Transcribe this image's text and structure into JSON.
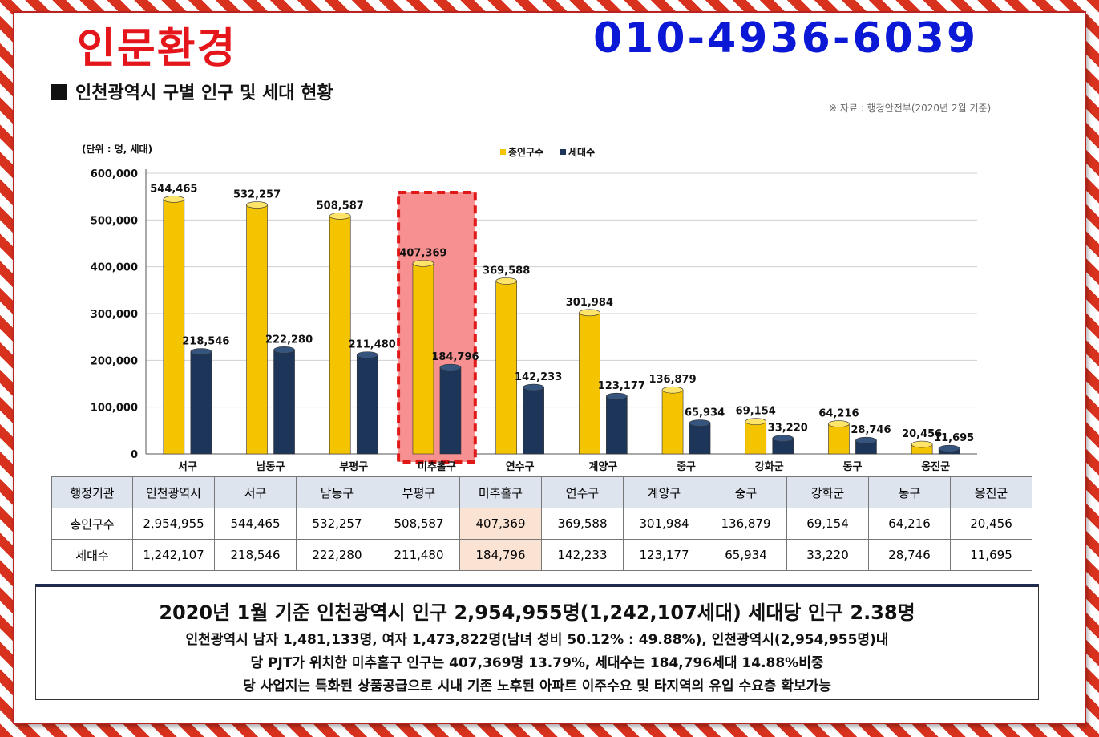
{
  "header": {
    "brand": "인문환경",
    "phone": "010-4936-6039",
    "section_title": "인천광역시 구별 인구 및 세대 현황",
    "source": "※ 자료 : 행정안전부(2020년 2월 기준)"
  },
  "colors": {
    "population": "#f5c400",
    "households": "#1d3559",
    "highlight": "#f79090",
    "brand_red": "#e4161c",
    "phone_blue": "#0b18d6"
  },
  "chart_data": {
    "type": "bar",
    "unit_label": "(단위 : 명, 세대)",
    "categories": [
      "서구",
      "남동구",
      "부평구",
      "미추홀구",
      "연수구",
      "계양구",
      "중구",
      "강화군",
      "동구",
      "옹진군"
    ],
    "series": [
      {
        "name": "총인구수",
        "values": [
          544465,
          532257,
          508587,
          407369,
          369588,
          301984,
          136879,
          69154,
          64216,
          20456
        ],
        "labels": [
          "544,465",
          "532,257",
          "508,587",
          "407,369",
          "369,588",
          "301,984",
          "136,879",
          "69,154",
          "64,216",
          "20,456"
        ]
      },
      {
        "name": "세대수",
        "values": [
          218546,
          222280,
          211480,
          184796,
          142233,
          123177,
          65934,
          33220,
          28746,
          11695
        ],
        "labels": [
          "218,546",
          "222,280",
          "211,480",
          "184,796",
          "142,233",
          "123,177",
          "65,934",
          "33,220",
          "28,746",
          "11,695"
        ]
      }
    ],
    "ylim": [
      0,
      600000
    ],
    "yticks": [
      "0",
      "100,000",
      "200,000",
      "300,000",
      "400,000",
      "500,000",
      "600,000"
    ],
    "legend_position": "top",
    "highlight_category": "미추홀구"
  },
  "table": {
    "header": [
      "행정기관",
      "인천광역시",
      "서구",
      "남동구",
      "부평구",
      "미추홀구",
      "연수구",
      "계양구",
      "중구",
      "강화군",
      "동구",
      "옹진군"
    ],
    "rows": [
      [
        "총인구수",
        "2,954,955",
        "544,465",
        "532,257",
        "508,587",
        "407,369",
        "369,588",
        "301,984",
        "136,879",
        "69,154",
        "64,216",
        "20,456"
      ],
      [
        "세대수",
        "1,242,107",
        "218,546",
        "222,280",
        "211,480",
        "184,796",
        "142,233",
        "123,177",
        "65,934",
        "33,220",
        "28,746",
        "11,695"
      ]
    ]
  },
  "summary": {
    "main": "2020년 1월 기준 인천광역시 인구 2,954,955명(1,242,107세대) 세대당 인구 2.38명",
    "line1": "인천광역시 남자 1,481,133명, 여자 1,473,822명(남녀 성비 50.12% : 49.88%), 인천광역시(2,954,955명)내",
    "line2": "당 PJT가 위치한 미추홀구 인구는 407,369명 13.79%, 세대수는 184,796세대 14.88%비중",
    "line3": "당 사업지는 특화된 상품공급으로 시내 기존 노후된 아파트 이주수요 및 타지역의 유입 수요층 확보가능"
  }
}
